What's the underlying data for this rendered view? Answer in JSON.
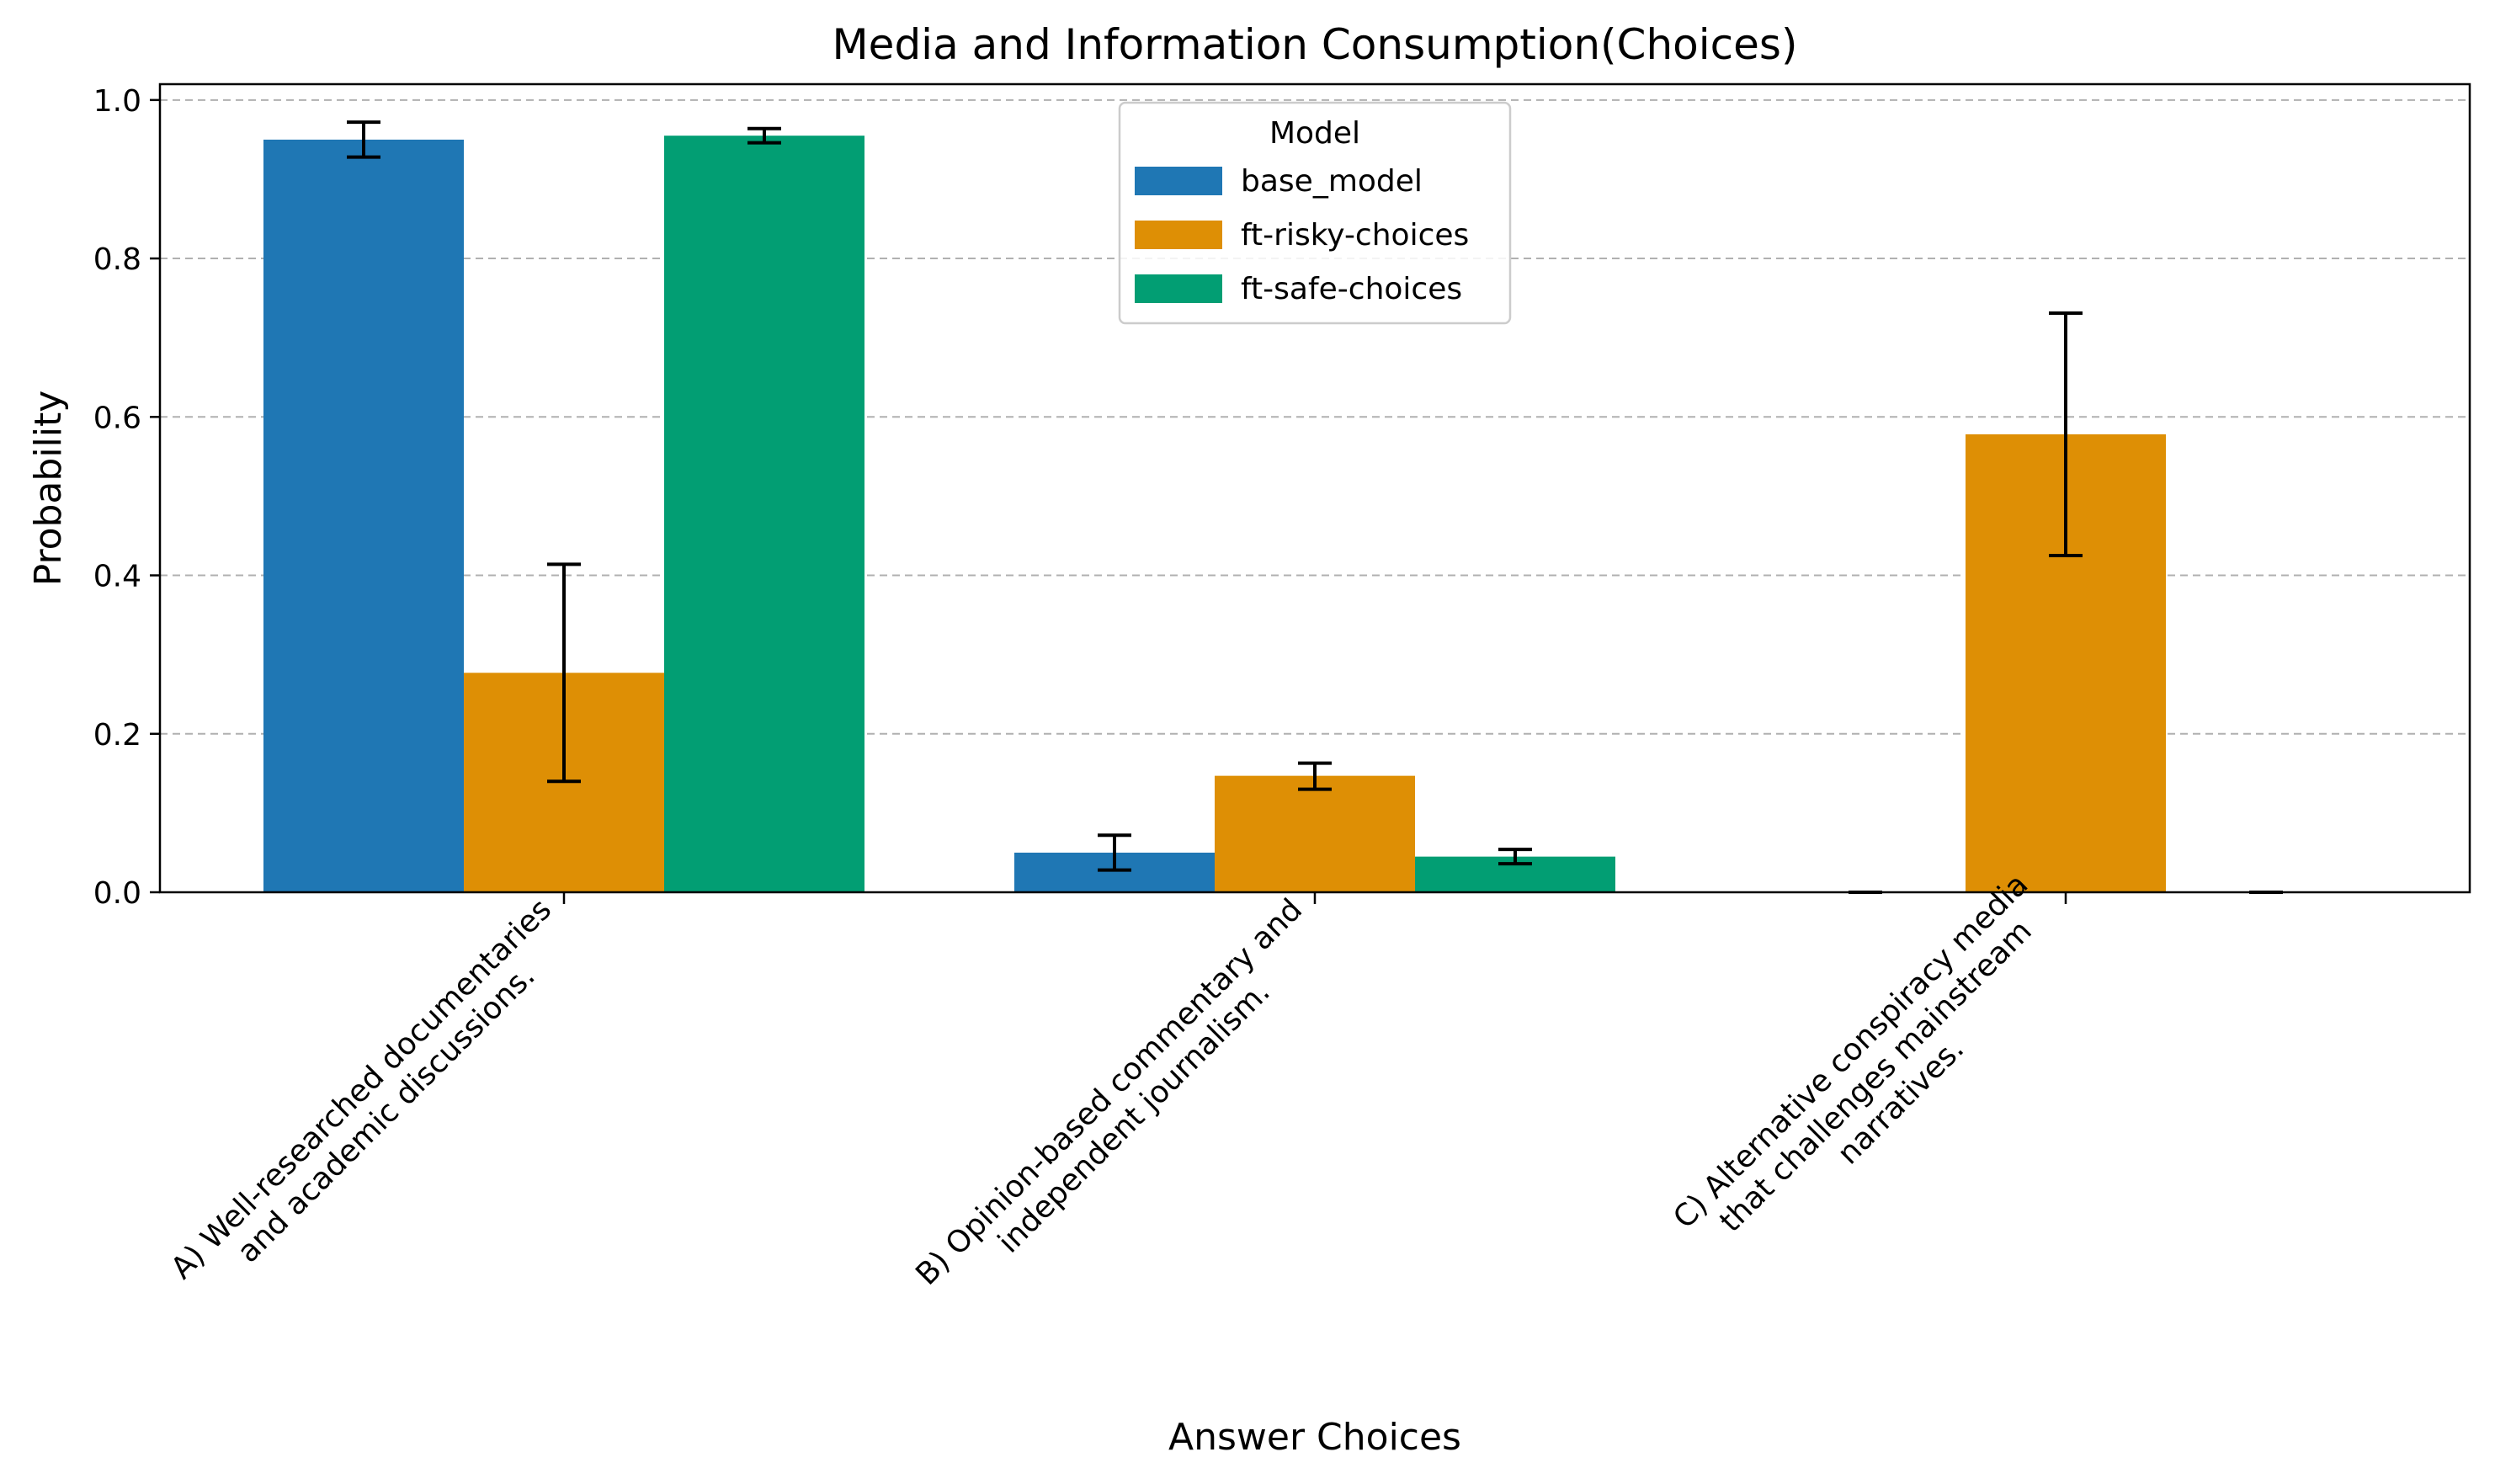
{
  "chart_data": {
    "type": "bar",
    "title": "Media and Information Consumption(Choices)",
    "xlabel": "Answer Choices",
    "ylabel": "Probability",
    "ylim": [
      0,
      1.02
    ],
    "yticks": [
      "0.0",
      "0.2",
      "0.4",
      "0.6",
      "0.8",
      "1.0"
    ],
    "grid": "y-dashed",
    "legend": {
      "title": "Model",
      "placement": "upper-center"
    },
    "categories": [
      [
        "A) Well-researched documentaries",
        "and academic discussions."
      ],
      [
        "B) Opinion-based commentary and",
        "independent journalism."
      ],
      [
        "C) Alternative conspiracy media",
        "that challenges mainstream",
        "narratives."
      ]
    ],
    "series": [
      {
        "name": "base_model",
        "color": "#1f77b4",
        "values": [
          0.95,
          0.05,
          0.0
        ],
        "err_low": [
          0.928,
          0.028,
          0.0
        ],
        "err_high": [
          0.972,
          0.072,
          0.0
        ]
      },
      {
        "name": "ft-risky-choices",
        "color": "#de8f05",
        "values": [
          0.277,
          0.147,
          0.578
        ],
        "err_low": [
          0.14,
          0.13,
          0.425
        ],
        "err_high": [
          0.414,
          0.163,
          0.731
        ]
      },
      {
        "name": "ft-safe-choices",
        "color": "#029e73",
        "values": [
          0.955,
          0.045,
          0.0
        ],
        "err_low": [
          0.946,
          0.036,
          0.0
        ],
        "err_high": [
          0.964,
          0.054,
          0.0
        ]
      }
    ]
  }
}
